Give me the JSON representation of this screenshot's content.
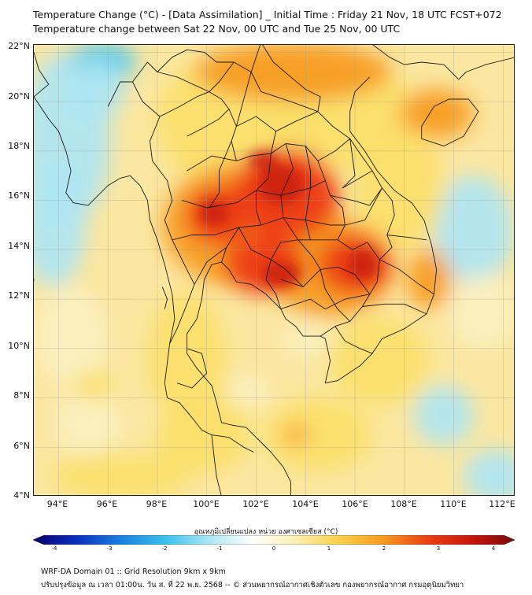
{
  "title_line1": "Temperature Change (°C) - [Data Assimilation] _ Initial Time : Friday 21 Nov, 18 UTC FCST+072",
  "title_line2": "Temperature change between Sat 22 Nov, 00 UTC and Tue 25 Nov, 00 UTC",
  "map": {
    "latitude_labels": [
      "22°N",
      "20°N",
      "18°N",
      "16°N",
      "14°N",
      "12°N",
      "10°N",
      "8°N",
      "6°N",
      "4°N"
    ],
    "longitude_labels": [
      "94°E",
      "96°E",
      "98°E",
      "100°E",
      "102°E",
      "104°E",
      "106°E",
      "108°E",
      "110°E",
      "112°E"
    ],
    "lat_range": [
      4,
      22.3
    ],
    "lon_range": [
      93,
      112.5
    ],
    "gridlines": true,
    "colors": {
      "dark_red": "#c81e0a",
      "red": "#ee3a12",
      "orange": "#f79a1e",
      "yellow": "#fbe06a",
      "pale": "#fbf0c0",
      "light_blue": "#aee5f3",
      "cyan": "#45c8ee",
      "border_line": "#1a1a1a"
    }
  },
  "colorbar": {
    "label": "อุณหภูมิเปลี่ยนแปลง หน่วย องศาเซลเซียส (°C)",
    "tick_labels": [
      "-4",
      "-3",
      "-2",
      "-1",
      "0",
      "1",
      "2",
      "3",
      "4"
    ],
    "range": [
      -4,
      4
    ],
    "colors": [
      "#08006e",
      "#0a2fbf",
      "#1a7fe0",
      "#38c0ee",
      "#a8e6f4",
      "#ffffff",
      "#fbf0b0",
      "#fbd048",
      "#f79a1e",
      "#ec4010",
      "#c8160c",
      "#7a0808"
    ]
  },
  "footer": {
    "line1": "WRF-DA Domain 01 :: Grid Resolution 9km x 9km",
    "line2": "ปรับปรุงข้อมูล ณ เวลา 01:00น. วัน ส. ที่ 22 พ.ย. 2568 -- © ส่วนพยากรณ์อากาศเชิงตัวเลข กองพยากรณ์อากาศ กรมอุตุนิยมวิทยา"
  }
}
